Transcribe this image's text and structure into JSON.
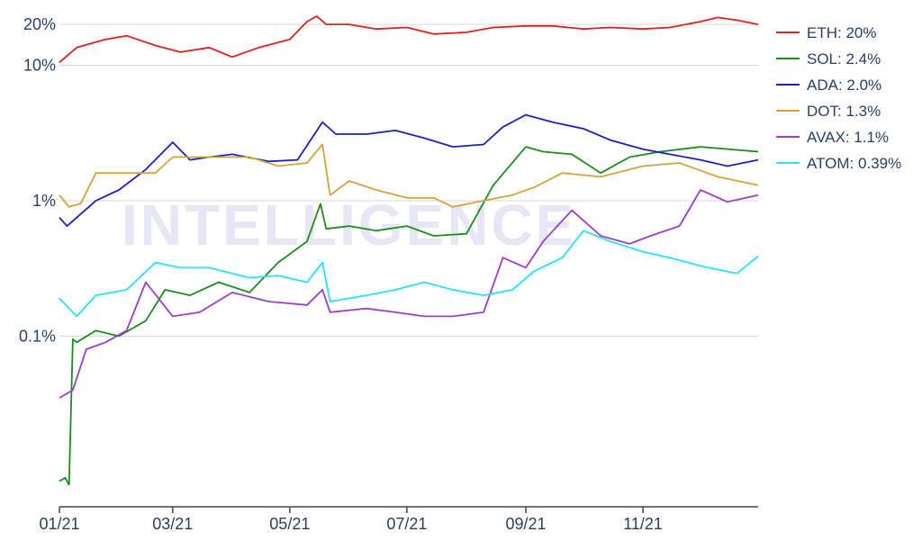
{
  "watermark": {
    "text": "INTELLIGENCE"
  },
  "chart_data": {
    "type": "line",
    "title": "",
    "xlabel": "",
    "ylabel": "",
    "y_scale": "log",
    "ylim": [
      0.0055,
      26
    ],
    "xlim": [
      "2021-01-01",
      "2021-12-31"
    ],
    "x_ticks": [
      {
        "date": "2021-01-01",
        "label": "01/21"
      },
      {
        "date": "2021-03-01",
        "label": "03/21"
      },
      {
        "date": "2021-05-01",
        "label": "05/21"
      },
      {
        "date": "2021-07-01",
        "label": "07/21"
      },
      {
        "date": "2021-09-01",
        "label": "09/21"
      },
      {
        "date": "2021-11-01",
        "label": "11/21"
      }
    ],
    "y_ticks": [
      {
        "value": 20,
        "label": "20%"
      },
      {
        "value": 10,
        "label": "10%"
      },
      {
        "value": 1,
        "label": "1%"
      },
      {
        "value": 0.1,
        "label": "0.1%"
      }
    ],
    "grid": "horizontal",
    "legend_position": "right",
    "series": [
      {
        "name": "ETH: 20%",
        "color": "#e0201b",
        "x": [
          "2021-01-01",
          "2021-01-10",
          "2021-01-25",
          "2021-02-05",
          "2021-02-20",
          "2021-03-05",
          "2021-03-20",
          "2021-04-01",
          "2021-04-15",
          "2021-05-01",
          "2021-05-10",
          "2021-05-15",
          "2021-05-20",
          "2021-06-01",
          "2021-06-15",
          "2021-07-01",
          "2021-07-15",
          "2021-08-01",
          "2021-08-15",
          "2021-09-01",
          "2021-09-15",
          "2021-10-01",
          "2021-10-15",
          "2021-11-01",
          "2021-11-15",
          "2021-12-01",
          "2021-12-10",
          "2021-12-20",
          "2021-12-31"
        ],
        "values": [
          10.5,
          13.5,
          15.5,
          16.5,
          14.0,
          12.5,
          13.5,
          11.5,
          13.5,
          15.5,
          21.0,
          23.0,
          20.0,
          20.0,
          18.5,
          19.0,
          17.0,
          17.5,
          19.0,
          19.5,
          19.5,
          18.5,
          19.0,
          18.5,
          19.0,
          21.0,
          22.5,
          21.5,
          20.0
        ]
      },
      {
        "name": "SOL: 2.4%",
        "color": "#1e8b1e",
        "x": [
          "2021-01-01",
          "2021-01-04",
          "2021-01-06",
          "2021-01-08",
          "2021-01-10",
          "2021-01-20",
          "2021-02-01",
          "2021-02-15",
          "2021-02-25",
          "2021-03-10",
          "2021-03-25",
          "2021-04-10",
          "2021-04-25",
          "2021-05-10",
          "2021-05-17",
          "2021-05-20",
          "2021-06-01",
          "2021-06-15",
          "2021-07-01",
          "2021-07-15",
          "2021-08-01",
          "2021-08-15",
          "2021-09-01",
          "2021-09-10",
          "2021-09-25",
          "2021-10-10",
          "2021-10-25",
          "2021-11-10",
          "2021-12-01",
          "2021-12-31"
        ],
        "values": [
          0.0085,
          0.009,
          0.008,
          0.095,
          0.09,
          0.11,
          0.1,
          0.13,
          0.22,
          0.2,
          0.25,
          0.21,
          0.35,
          0.5,
          0.95,
          0.62,
          0.65,
          0.6,
          0.65,
          0.55,
          0.57,
          1.3,
          2.5,
          2.3,
          2.2,
          1.6,
          2.1,
          2.3,
          2.5,
          2.3
        ]
      },
      {
        "name": "ADA: 2.0%",
        "color": "#1f1fbf",
        "x": [
          "2021-01-01",
          "2021-01-05",
          "2021-01-20",
          "2021-02-01",
          "2021-02-15",
          "2021-03-01",
          "2021-03-10",
          "2021-03-20",
          "2021-04-01",
          "2021-04-20",
          "2021-05-05",
          "2021-05-18",
          "2021-05-25",
          "2021-06-10",
          "2021-06-25",
          "2021-07-10",
          "2021-07-25",
          "2021-08-10",
          "2021-08-20",
          "2021-09-01",
          "2021-09-15",
          "2021-10-01",
          "2021-10-15",
          "2021-11-01",
          "2021-11-15",
          "2021-12-01",
          "2021-12-15",
          "2021-12-31"
        ],
        "values": [
          0.75,
          0.65,
          1.0,
          1.2,
          1.7,
          2.7,
          2.0,
          2.1,
          2.2,
          1.95,
          2.0,
          3.8,
          3.1,
          3.1,
          3.3,
          2.9,
          2.5,
          2.6,
          3.5,
          4.3,
          3.8,
          3.4,
          2.8,
          2.4,
          2.2,
          2.0,
          1.8,
          2.0
        ]
      },
      {
        "name": "DOT: 1.3%",
        "color": "#d4a43c",
        "x": [
          "2021-01-01",
          "2021-01-06",
          "2021-01-12",
          "2021-01-20",
          "2021-02-01",
          "2021-02-20",
          "2021-03-01",
          "2021-03-20",
          "2021-04-10",
          "2021-04-25",
          "2021-05-10",
          "2021-05-18",
          "2021-05-22",
          "2021-06-01",
          "2021-06-15",
          "2021-07-01",
          "2021-07-15",
          "2021-07-25",
          "2021-08-10",
          "2021-08-25",
          "2021-09-05",
          "2021-09-20",
          "2021-10-10",
          "2021-11-01",
          "2021-11-20",
          "2021-12-10",
          "2021-12-31"
        ],
        "values": [
          1.1,
          0.9,
          0.95,
          1.6,
          1.6,
          1.6,
          2.1,
          2.1,
          2.1,
          1.8,
          1.9,
          2.6,
          1.1,
          1.4,
          1.2,
          1.05,
          1.05,
          0.9,
          1.0,
          1.1,
          1.25,
          1.6,
          1.5,
          1.8,
          1.9,
          1.5,
          1.3
        ]
      },
      {
        "name": "AVAX: 1.1%",
        "color": "#9b3fc6",
        "x": [
          "2021-01-01",
          "2021-01-08",
          "2021-01-15",
          "2021-01-25",
          "2021-02-05",
          "2021-02-15",
          "2021-03-01",
          "2021-03-15",
          "2021-04-01",
          "2021-04-20",
          "2021-05-10",
          "2021-05-18",
          "2021-05-22",
          "2021-06-10",
          "2021-06-25",
          "2021-07-10",
          "2021-07-25",
          "2021-08-10",
          "2021-08-20",
          "2021-09-01",
          "2021-09-10",
          "2021-09-25",
          "2021-10-10",
          "2021-10-25",
          "2021-11-05",
          "2021-11-20",
          "2021-12-01",
          "2021-12-15",
          "2021-12-31"
        ],
        "values": [
          0.035,
          0.04,
          0.08,
          0.09,
          0.11,
          0.25,
          0.14,
          0.15,
          0.21,
          0.18,
          0.17,
          0.22,
          0.15,
          0.16,
          0.15,
          0.14,
          0.14,
          0.15,
          0.38,
          0.32,
          0.5,
          0.85,
          0.55,
          0.48,
          0.55,
          0.65,
          1.2,
          0.98,
          1.1
        ]
      },
      {
        "name": "ATOM: 0.39%",
        "color": "#25e4f0",
        "x": [
          "2021-01-01",
          "2021-01-10",
          "2021-01-20",
          "2021-02-05",
          "2021-02-20",
          "2021-03-05",
          "2021-03-20",
          "2021-04-10",
          "2021-04-25",
          "2021-05-10",
          "2021-05-18",
          "2021-05-22",
          "2021-06-10",
          "2021-06-25",
          "2021-07-10",
          "2021-07-25",
          "2021-08-10",
          "2021-08-25",
          "2021-09-05",
          "2021-09-20",
          "2021-10-01",
          "2021-10-15",
          "2021-11-01",
          "2021-11-15",
          "2021-12-01",
          "2021-12-20",
          "2021-12-31"
        ],
        "values": [
          0.19,
          0.14,
          0.2,
          0.22,
          0.35,
          0.32,
          0.32,
          0.27,
          0.28,
          0.25,
          0.35,
          0.18,
          0.2,
          0.22,
          0.25,
          0.22,
          0.2,
          0.22,
          0.3,
          0.38,
          0.6,
          0.5,
          0.42,
          0.38,
          0.33,
          0.29,
          0.39
        ]
      }
    ]
  }
}
